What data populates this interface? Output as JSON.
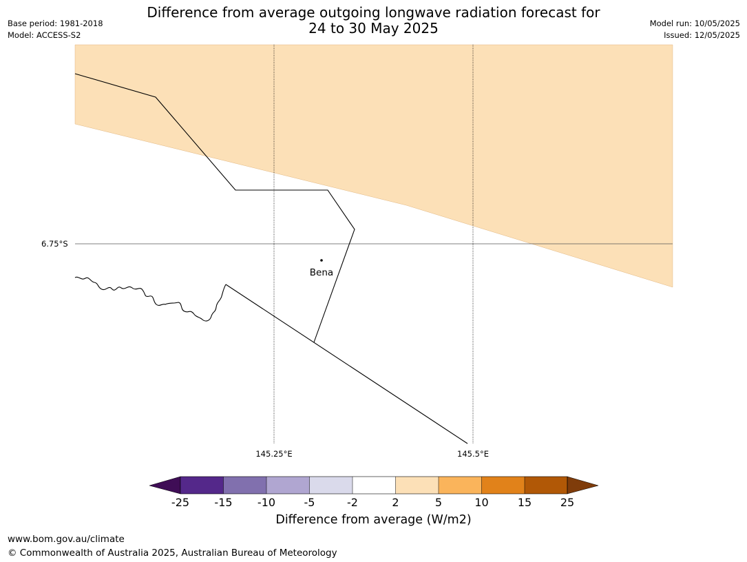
{
  "header": {
    "title_line1": "Difference from average outgoing longwave radiation forecast for",
    "title_line2": "24 to 30 May 2025",
    "base_period": "Base period: 1981-2018",
    "model": "Model: ACCESS-S2",
    "model_run": "Model run: 10/05/2025",
    "issued": "Issued: 12/05/2025"
  },
  "map": {
    "latitude_label": "6.75°S",
    "longitude_labels": [
      "145.25°E",
      "145.5°E"
    ],
    "place_name": "Bena",
    "shaded_category": "2 to 5",
    "shaded_color": "#fce0b7",
    "gridline_style": "dotted"
  },
  "legend": {
    "tick_labels": [
      "-25",
      "-15",
      "-10",
      "-5",
      "-2",
      "2",
      "5",
      "10",
      "15",
      "25"
    ],
    "colors": [
      "#3f0d56",
      "#54288a",
      "#8170ae",
      "#b0a6d1",
      "#dadaeb",
      "#ffffff",
      "#fce0b7",
      "#fab45b",
      "#e1821a",
      "#b15806",
      "#7f3c0a"
    ],
    "title": "Difference from average (W/m2)"
  },
  "footer": {
    "url": "www.bom.gov.au/climate",
    "copyright": "© Commonwealth of Australia 2025, Australian Bureau of Meteorology"
  }
}
